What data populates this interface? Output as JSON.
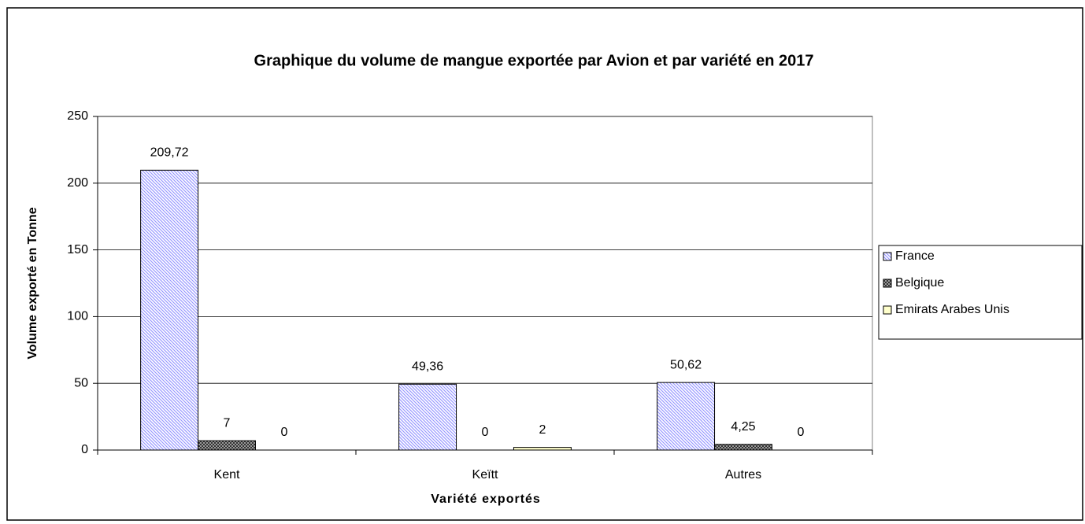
{
  "chart_data": {
    "type": "bar",
    "title": "Graphique du volume de mangue exportée par Avion  et par variété  en 2017",
    "x_label": "Variété exportés",
    "y_label": "Volume exporté en Tonne",
    "categories": [
      "Kent",
      "Keïtt",
      "Autres"
    ],
    "series": [
      {
        "name": "France",
        "color": "#9999ff",
        "values": [
          209.72,
          49.36,
          50.62
        ],
        "value_labels": [
          "209,72",
          "49,36",
          "50,62"
        ]
      },
      {
        "name": "Belgique",
        "color": "#333333",
        "values": [
          7,
          0,
          4.25
        ],
        "value_labels": [
          "7",
          "0",
          "4,25"
        ]
      },
      {
        "name": "Emirats Arabes Unis",
        "color": "#ffffcc",
        "values": [
          0,
          2,
          0
        ],
        "value_labels": [
          "0",
          "2",
          "0"
        ]
      }
    ],
    "ylim": [
      0,
      250
    ],
    "yticks": [
      0,
      50,
      100,
      150,
      200,
      250
    ],
    "grid": true,
    "legend": "right"
  }
}
